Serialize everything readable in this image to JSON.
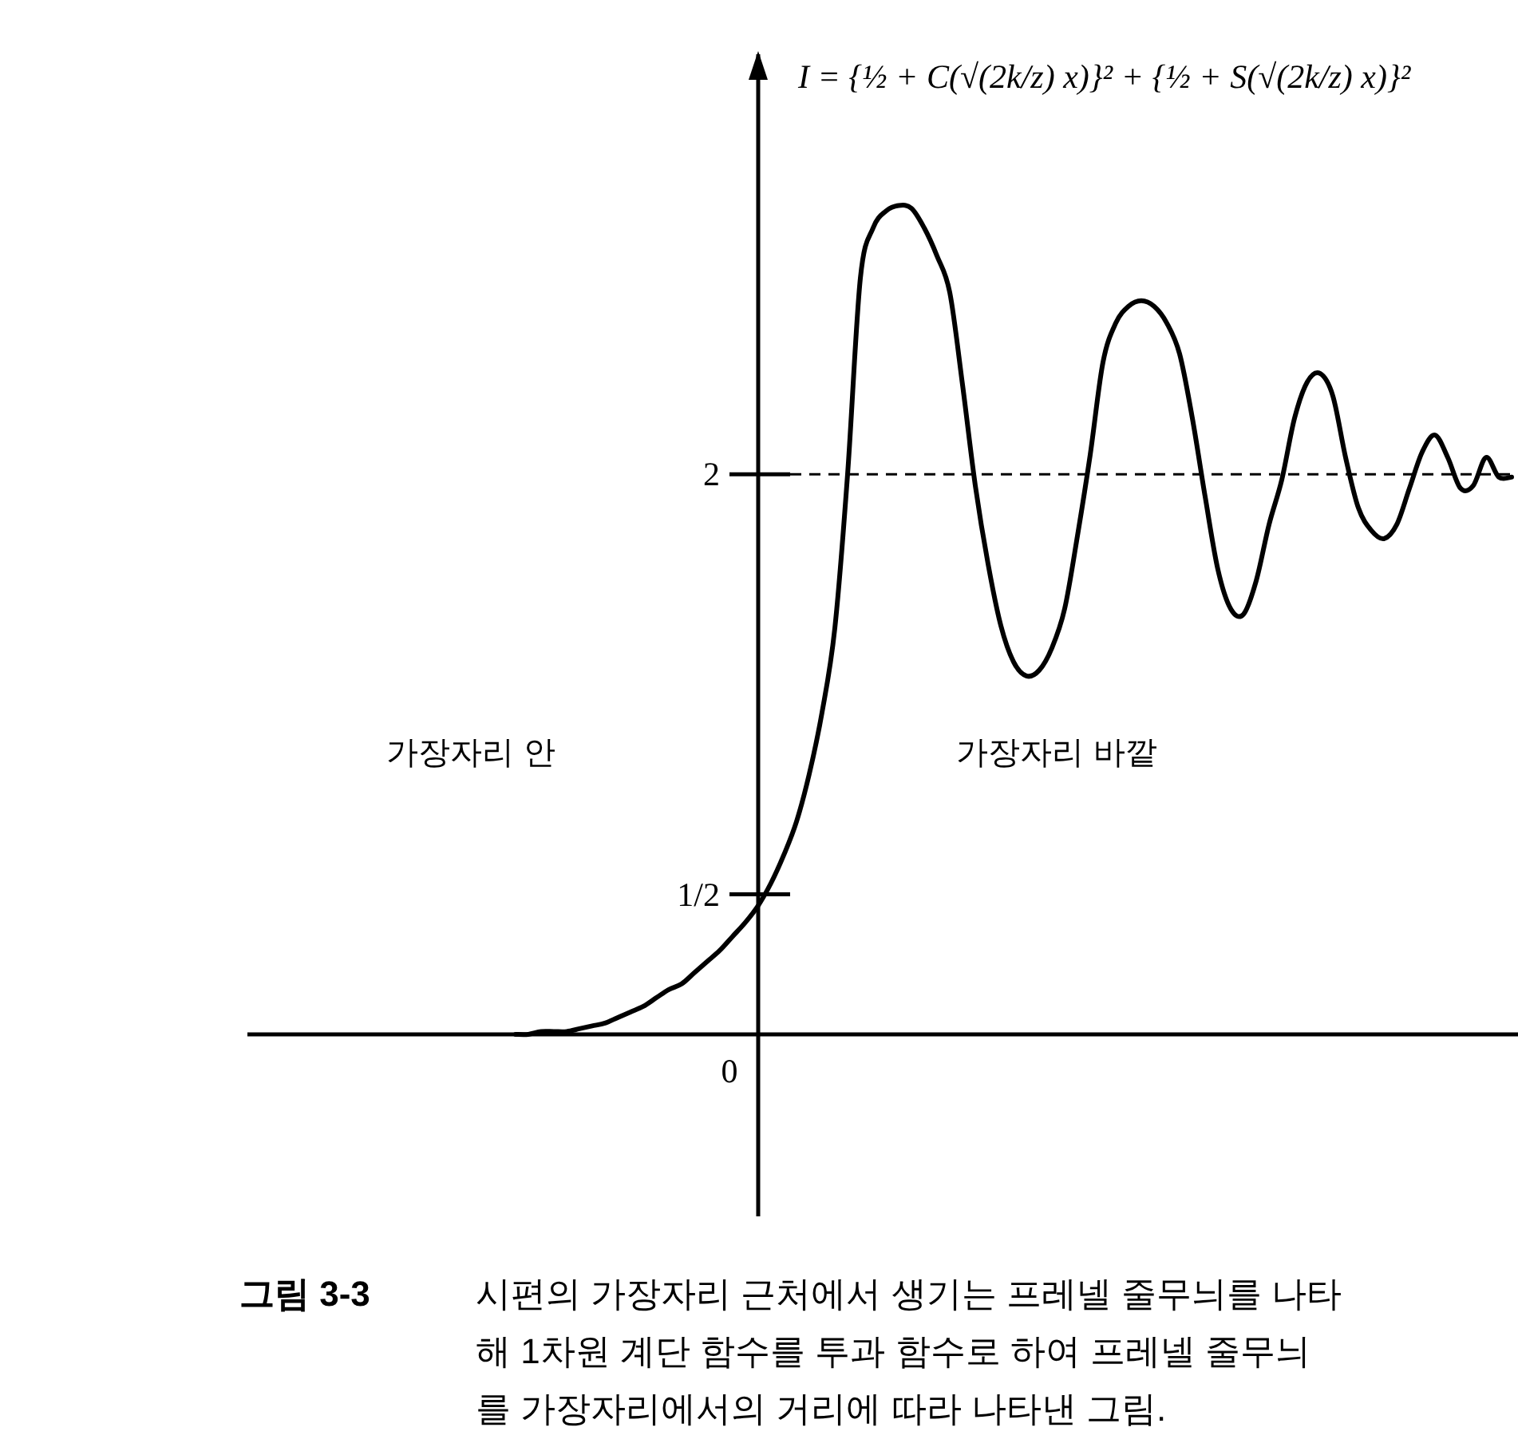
{
  "chart_data": {
    "type": "line",
    "title": "I = {½ + C(√(2k/z) x)}² + {½ + S(√(2k/z) x)}²",
    "annotations": [
      "0",
      "가장자리 안",
      "가장자리 바깥",
      "그림 3-3",
      "시편의 가장자리 근처에서 생기는 프레넬 줄무늬를 나타\n해 1차원 계단 함수를 투과 함수로 하여 프레넬 줄무늬\n를 가장자리에서의 거리에 따라 나타낸 그림."
    ],
    "categories": [
      null,
      null,
      null,
      null,
      null,
      null,
      null,
      null,
      null,
      null,
      null,
      null,
      null,
      null,
      null,
      null,
      null,
      null,
      null,
      null,
      null,
      null,
      null,
      null,
      null,
      null,
      null,
      null,
      null,
      null,
      null,
      null,
      null,
      null,
      null,
      null,
      null,
      null,
      null,
      null,
      null,
      null,
      null,
      null,
      null,
      null,
      null,
      null,
      null,
      null,
      null,
      null,
      null,
      null,
      null,
      null,
      null,
      null,
      null,
      null,
      null,
      null,
      null,
      null,
      null,
      null,
      null,
      null,
      null,
      null,
      null,
      null,
      null,
      null,
      null,
      null,
      null,
      null,
      null,
      null,
      null,
      null,
      null,
      null,
      null,
      null,
      null,
      null,
      null,
      null,
      null,
      null,
      null,
      null,
      null,
      null,
      null,
      null,
      null,
      null
    ],
    "series": [
      {
        "color": "#000000",
        "values": [
          null,
          null,
          null,
          null,
          null,
          null,
          null,
          null,
          null,
          null,
          null,
          null,
          null,
          null,
          null,
          null,
          null,
          null,
          null,
          null,
          null,
          0,
          0,
          0.01,
          0.01,
          0.01,
          0.02,
          0.03,
          0.04,
          0.06,
          0.08,
          0.1,
          0.13,
          0.16,
          0.18,
          0.22,
          0.26,
          0.3,
          0.35,
          0.4,
          0.46,
          0.54,
          0.64,
          0.76,
          0.93,
          1.15,
          1.45,
          2.0,
          2.7,
          2.88,
          2.94,
          2.96,
          2.95,
          2.88,
          2.78,
          2.65,
          2.32,
          1.96,
          1.68,
          1.46,
          1.33,
          1.28,
          1.3,
          1.38,
          1.52,
          1.78,
          2.07,
          2.4,
          2.54,
          2.6,
          2.62,
          2.6,
          2.54,
          2.43,
          2.2,
          1.92,
          1.66,
          1.52,
          1.5,
          1.62,
          1.82,
          1.98,
          2.2,
          2.33,
          2.36,
          2.28,
          2.06,
          1.88,
          1.8,
          1.77,
          1.82,
          1.95,
          2.08,
          2.14,
          2.06,
          1.95,
          1.96,
          2.06,
          1.99,
          1.99
        ]
      }
    ],
    "ylim": [
      -0.65,
      3.5
    ],
    "yticks": [
      {
        "value": 0.5,
        "label": "1/2"
      },
      2
    ],
    "ref_lines": [
      {
        "axis": "y",
        "value": 2,
        "color": "#000000",
        "line_style": "dashed"
      }
    ],
    "tick_labels": "y",
    "grid": false,
    "marker": "none",
    "line_style": "solid"
  }
}
